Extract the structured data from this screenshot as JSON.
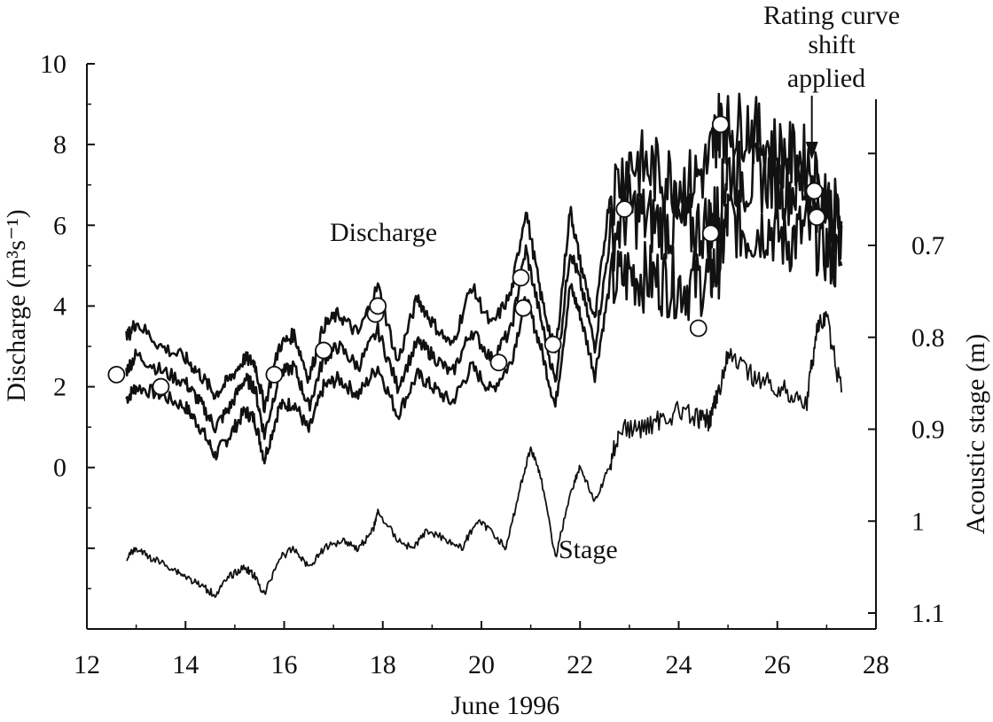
{
  "chart_data": {
    "type": "line",
    "xlabel": "June 1996",
    "ylabel_left": "Discharge  (m³s⁻¹)",
    "ylabel_right": "Acoustic stage  (m)",
    "xlim": [
      12,
      28
    ],
    "ylim_left": [
      -4,
      10
    ],
    "ylim_right": [
      0.6,
      1.1
    ],
    "x_ticks": [
      12,
      14,
      16,
      18,
      20,
      22,
      24,
      26,
      28
    ],
    "y_left_ticks": [
      0,
      2,
      4,
      6,
      8,
      10
    ],
    "y_right_ticks": [
      0.7,
      0.8,
      0.9,
      1,
      1.1
    ],
    "y_right_tick_labels": [
      "0.7",
      "0.8",
      "0.9",
      "1",
      "1.1"
    ],
    "annotations": {
      "discharge_label": "Discharge",
      "stage_label": "Stage",
      "shift_line1": "Rating curve",
      "shift_line2": "shift",
      "shift_line3": "applied",
      "shift_arrow_x": 26.7
    },
    "series": [
      {
        "axis": "left",
        "x": [
          12.8,
          13.0,
          13.5,
          14.0,
          14.3,
          14.6,
          14.9,
          15.2,
          15.4,
          15.6,
          15.9,
          16.2,
          16.5,
          16.8,
          17.1,
          17.5,
          17.9,
          18.3,
          18.7,
          19.0,
          19.4,
          19.8,
          20.2,
          20.6,
          20.9,
          21.2,
          21.5,
          21.8,
          22.0,
          22.3,
          22.6,
          23.0,
          23.4,
          23.8,
          24.2,
          24.6,
          24.8,
          25.0,
          25.4,
          25.8,
          26.2,
          26.6,
          27.0,
          27.3
        ],
        "y": [
          1.7,
          2.0,
          1.8,
          1.5,
          1.0,
          0.3,
          0.8,
          1.4,
          1.2,
          0.2,
          1.5,
          1.6,
          0.9,
          2.0,
          2.2,
          1.8,
          2.5,
          1.3,
          2.3,
          2.0,
          1.6,
          2.5,
          1.9,
          2.6,
          4.2,
          3.0,
          1.5,
          4.5,
          3.8,
          2.3,
          4.5,
          4.8,
          4.7,
          4.6,
          4.5,
          4.7,
          5.0,
          6.2,
          5.8,
          6.0,
          5.6,
          5.9,
          5.4,
          5.0
        ]
      },
      {
        "axis": "left",
        "x": [
          12.8,
          13.0,
          13.5,
          14.0,
          14.3,
          14.6,
          14.9,
          15.2,
          15.4,
          15.6,
          15.9,
          16.2,
          16.5,
          16.8,
          17.1,
          17.5,
          17.9,
          18.3,
          18.7,
          19.0,
          19.4,
          19.8,
          20.2,
          20.6,
          20.9,
          21.2,
          21.5,
          21.8,
          22.0,
          22.3,
          22.6,
          23.0,
          23.4,
          23.8,
          24.2,
          24.6,
          24.8,
          25.0,
          25.4,
          25.8,
          26.2,
          26.6,
          27.0,
          27.3
        ],
        "y": [
          2.4,
          2.8,
          2.4,
          2.1,
          1.6,
          1.0,
          1.5,
          2.2,
          2.0,
          0.8,
          2.3,
          2.5,
          1.5,
          2.7,
          3.0,
          2.5,
          3.4,
          2.0,
          3.1,
          2.8,
          2.3,
          3.4,
          2.7,
          3.4,
          5.4,
          3.7,
          2.1,
          5.4,
          4.6,
          3.0,
          5.6,
          6.4,
          6.1,
          6.0,
          5.9,
          6.0,
          6.3,
          7.4,
          7.1,
          7.2,
          6.9,
          7.0,
          6.4,
          6.0
        ]
      },
      {
        "axis": "left",
        "x": [
          12.8,
          13.0,
          13.5,
          14.0,
          14.3,
          14.6,
          14.9,
          15.2,
          15.4,
          15.6,
          15.9,
          16.2,
          16.5,
          16.8,
          17.1,
          17.5,
          17.9,
          18.3,
          18.7,
          19.0,
          19.4,
          19.8,
          20.2,
          20.6,
          20.9,
          21.2,
          21.5,
          21.8,
          22.0,
          22.3,
          22.6,
          23.0,
          23.4,
          23.8,
          24.2,
          24.6,
          24.8,
          25.0,
          25.4,
          25.8,
          26.2,
          26.6,
          27.0,
          27.3
        ],
        "y": [
          3.2,
          3.6,
          3.0,
          2.7,
          2.3,
          1.8,
          2.2,
          2.7,
          2.6,
          1.5,
          3.0,
          3.3,
          2.2,
          3.5,
          3.8,
          3.3,
          4.5,
          2.6,
          4.2,
          3.6,
          3.0,
          4.5,
          3.5,
          4.3,
          6.4,
          4.3,
          2.8,
          6.4,
          5.1,
          3.6,
          6.7,
          7.6,
          7.4,
          7.2,
          7.0,
          7.5,
          8.5,
          8.4,
          8.5,
          8.0,
          7.7,
          7.6,
          6.5,
          6.1
        ]
      },
      {
        "axis": "right",
        "x": [
          12.8,
          13.0,
          13.3,
          13.7,
          14.0,
          14.3,
          14.6,
          14.9,
          15.2,
          15.4,
          15.6,
          15.9,
          16.2,
          16.5,
          16.8,
          17.2,
          17.5,
          17.8,
          17.9,
          18.3,
          18.6,
          18.9,
          19.3,
          19.6,
          19.9,
          20.2,
          20.5,
          20.8,
          21.0,
          21.2,
          21.5,
          21.8,
          22.0,
          22.3,
          22.6,
          22.8,
          23.2,
          23.6,
          24.0,
          24.4,
          24.6,
          24.7,
          24.8,
          25.0,
          25.4,
          25.8,
          26.2,
          26.6,
          26.8,
          27.0,
          27.3
        ],
        "y": [
          1.04,
          1.03,
          1.04,
          1.05,
          1.06,
          1.07,
          1.08,
          1.06,
          1.05,
          1.06,
          1.08,
          1.04,
          1.03,
          1.05,
          1.03,
          1.02,
          1.03,
          1.01,
          0.99,
          1.02,
          1.03,
          1.01,
          1.02,
          1.03,
          1.0,
          1.01,
          1.03,
          0.96,
          0.92,
          0.95,
          1.04,
          0.97,
          0.94,
          0.98,
          0.94,
          0.9,
          0.9,
          0.89,
          0.88,
          0.89,
          0.89,
          0.88,
          0.86,
          0.82,
          0.84,
          0.85,
          0.86,
          0.87,
          0.79,
          0.78,
          0.86
        ]
      }
    ],
    "measurements": {
      "x": [
        12.6,
        13.5,
        15.8,
        16.8,
        17.85,
        17.9,
        20.35,
        20.8,
        20.85,
        21.45,
        22.9,
        24.4,
        24.65,
        24.85,
        26.75,
        26.8
      ],
      "y": [
        2.3,
        2.0,
        2.3,
        2.9,
        3.8,
        4.0,
        2.6,
        4.7,
        3.95,
        3.05,
        6.4,
        3.45,
        5.8,
        8.5,
        6.85,
        6.2
      ]
    }
  }
}
